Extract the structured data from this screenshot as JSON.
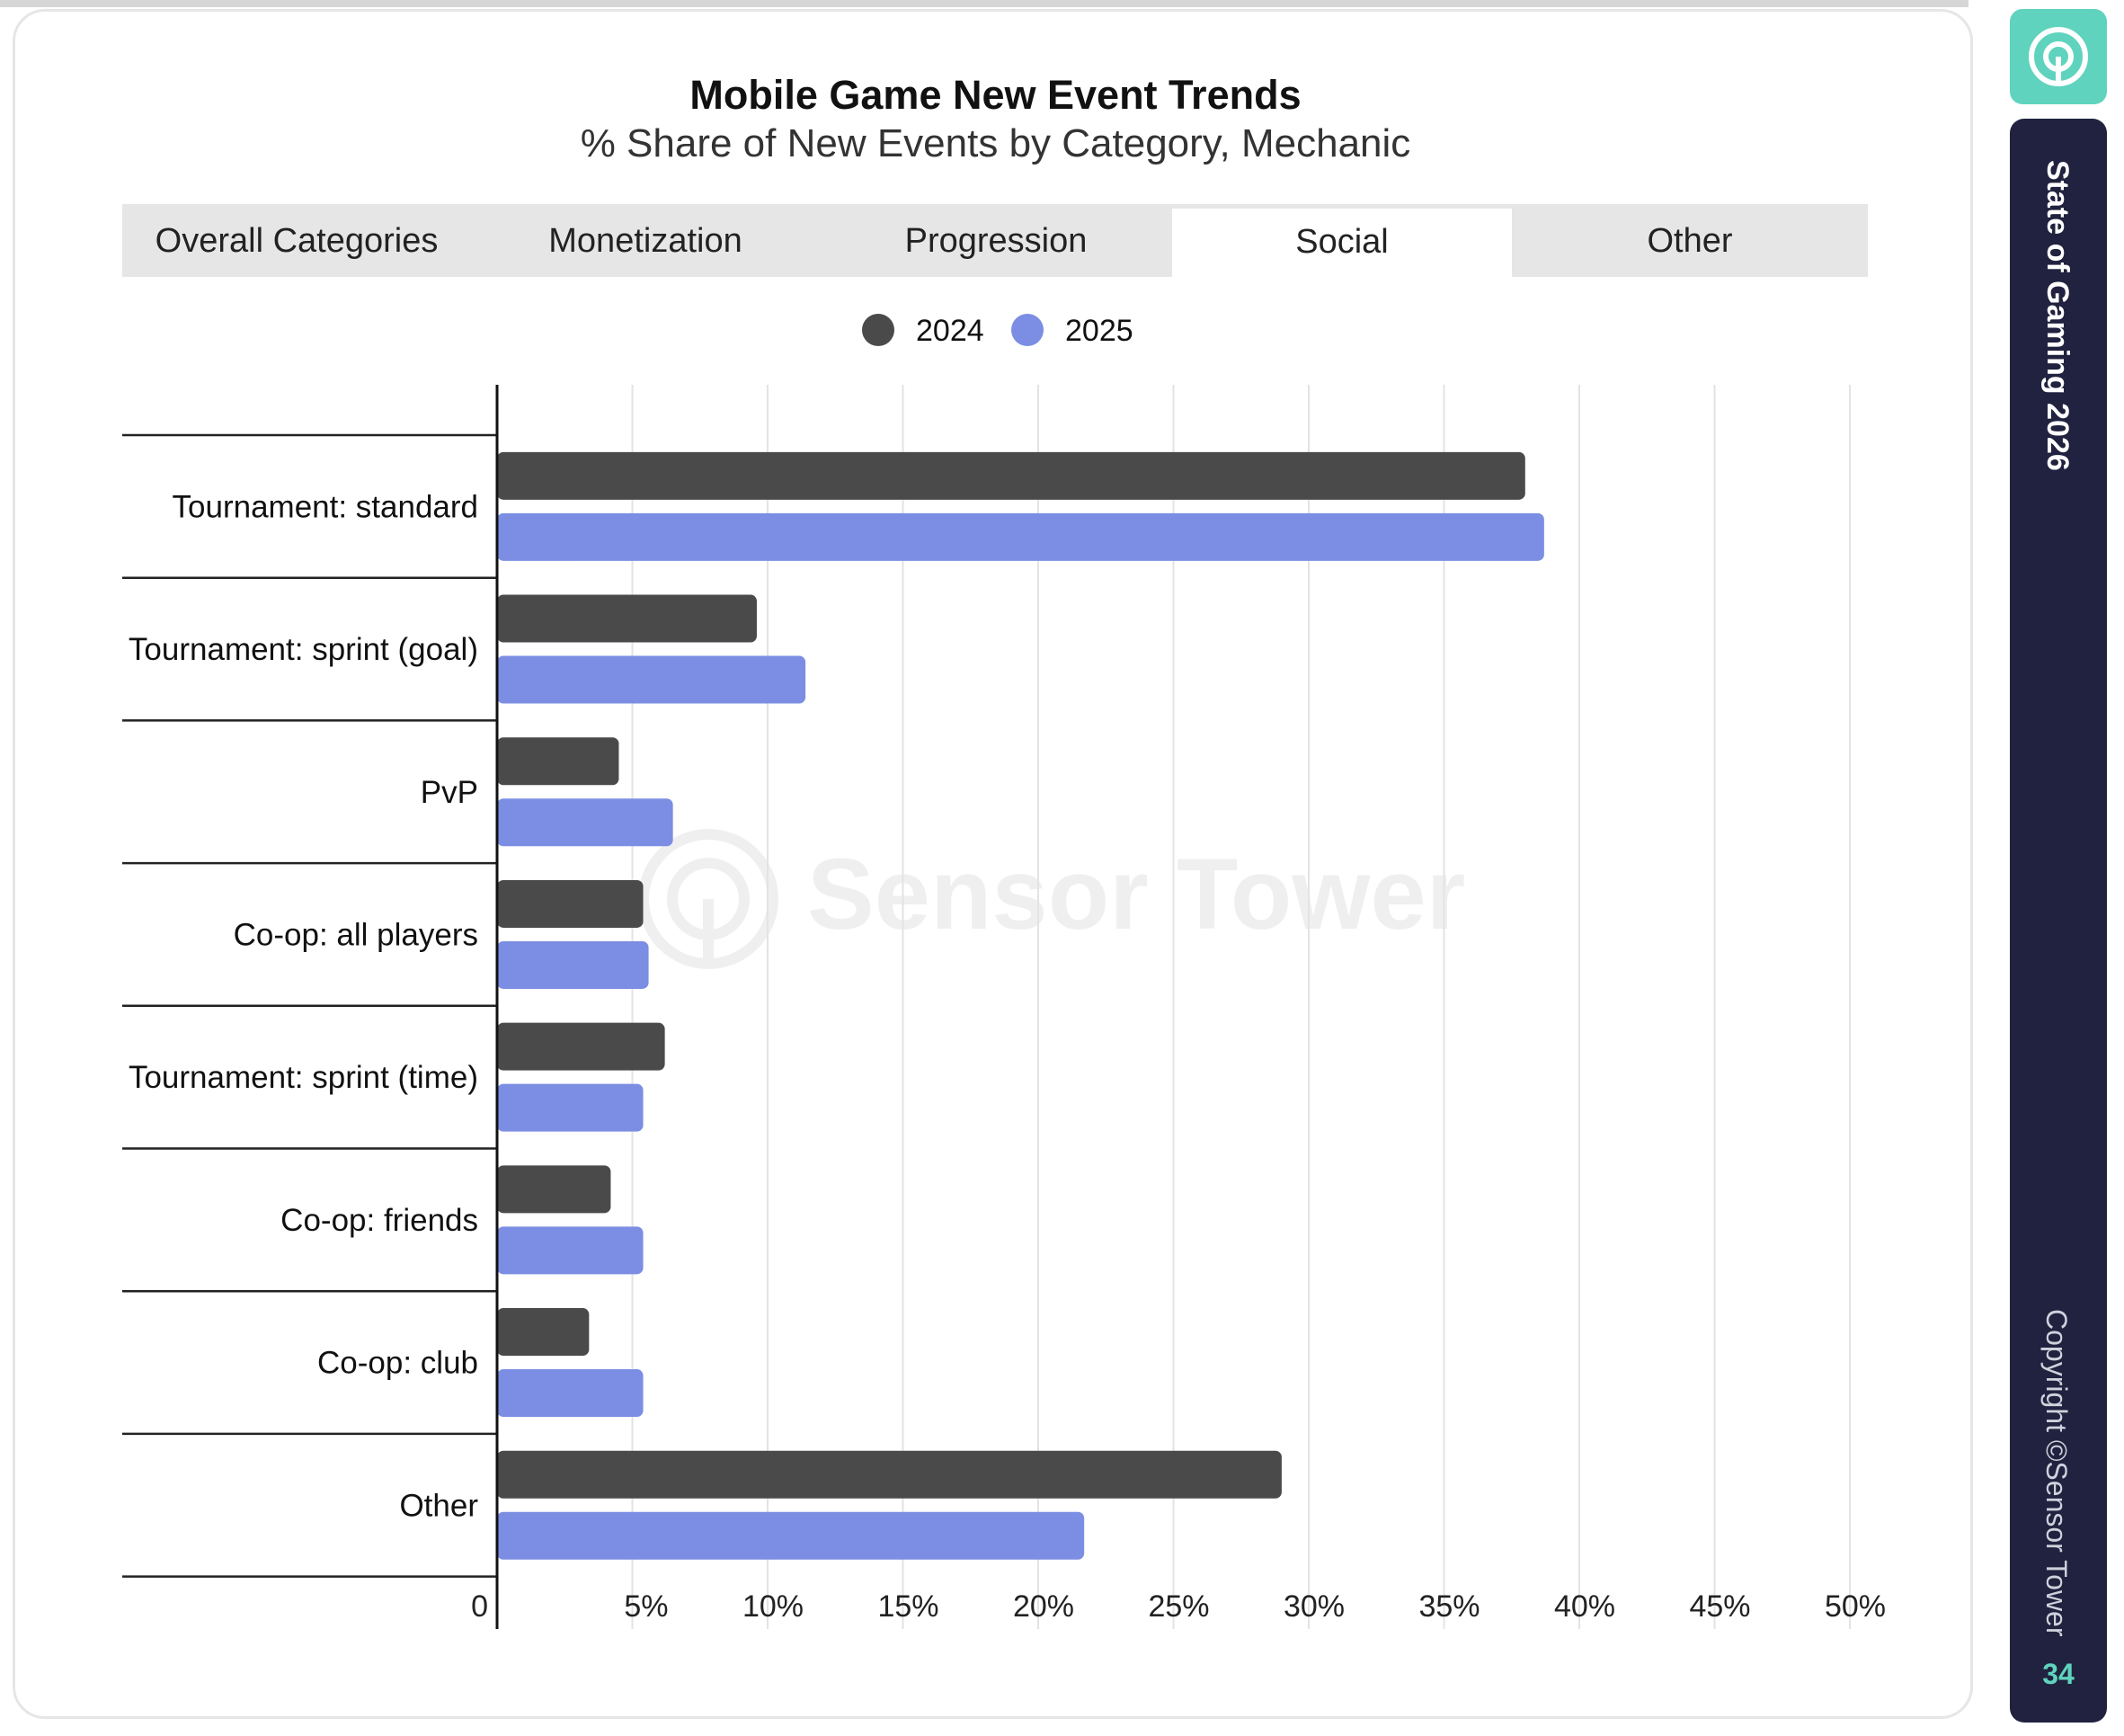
{
  "title": "Mobile Game New Event Trends",
  "subtitle": "% Share of New Events by Category, Mechanic",
  "tabs": [
    {
      "label": "Overall Categories",
      "active": false
    },
    {
      "label": "Monetization",
      "active": false
    },
    {
      "label": "Progression",
      "active": false
    },
    {
      "label": "Social",
      "active": true
    },
    {
      "label": "Other",
      "active": false
    }
  ],
  "sidebar": {
    "title": "State of Gaming 2026",
    "copyright": "Copyright ©Sensor Tower",
    "page_number": "34",
    "logo_icon": "sensor-tower-logo-icon"
  },
  "watermark": {
    "text": "Sensor Tower"
  },
  "colors": {
    "series_2024": "#4a4a4a",
    "series_2025": "#7b8ee3",
    "accent": "#5fd3bd",
    "sidebar_bg": "#20223f"
  },
  "chart_data": {
    "type": "bar",
    "orientation": "horizontal",
    "categories": [
      "Tournament: standard",
      "Tournament: sprint (goal)",
      "PvP",
      "Co-op: all players",
      "Tournament: sprint (time)",
      "Co-op: friends",
      "Co-op: club",
      "Other"
    ],
    "series": [
      {
        "name": "2024",
        "color": "#4a4a4a",
        "values": [
          38,
          9.6,
          4.5,
          5.4,
          6.2,
          4.2,
          3.4,
          29
        ]
      },
      {
        "name": "2025",
        "color": "#7b8ee3",
        "values": [
          38.7,
          11.4,
          6.5,
          5.6,
          5.4,
          5.4,
          5.4,
          21.7
        ]
      }
    ],
    "x_ticks": [
      "0",
      "5%",
      "10%",
      "15%",
      "20%",
      "25%",
      "30%",
      "35%",
      "40%",
      "45%",
      "50%"
    ],
    "xlim": [
      0,
      50
    ],
    "grid": true,
    "legend": "top-center"
  }
}
